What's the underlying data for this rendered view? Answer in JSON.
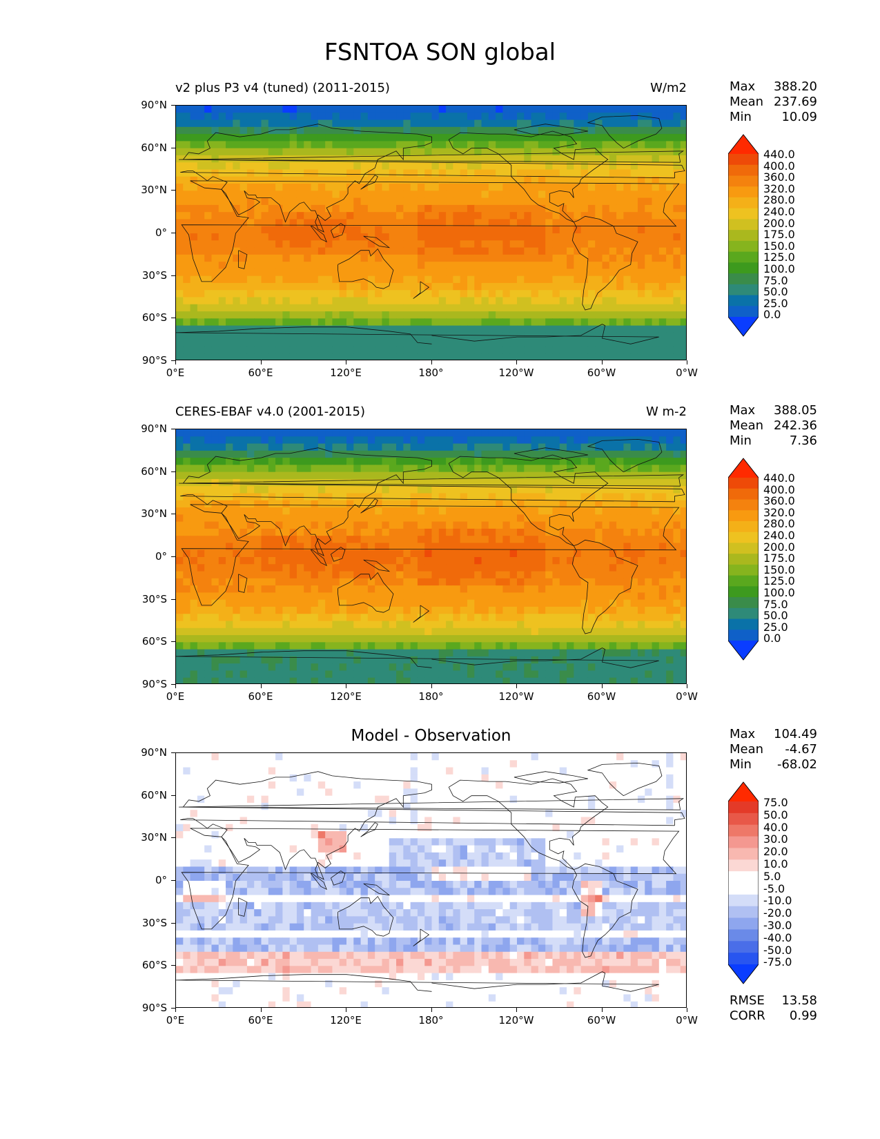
{
  "title": "FSNTOA SON global",
  "panels": [
    {
      "left_label": "v2 plus P3 v4 (tuned) (2011-2015)",
      "right_label": "W/m2",
      "stats": [
        [
          "Max",
          "388.20"
        ],
        [
          "Mean",
          "237.69"
        ],
        [
          "Min",
          "10.09"
        ]
      ],
      "colorbar_labels": [
        "440.0",
        "400.0",
        "360.0",
        "320.0",
        "280.0",
        "240.0",
        "200.0",
        "175.0",
        "150.0",
        "125.0",
        "100.0",
        "75.0",
        "50.0",
        "25.0",
        "0.0"
      ]
    },
    {
      "left_label": "CERES-EBAF v4.0 (2001-2015)",
      "right_label": "W m-2",
      "stats": [
        [
          "Max",
          "388.05"
        ],
        [
          "Mean",
          "242.36"
        ],
        [
          "Min",
          "7.36"
        ]
      ],
      "colorbar_labels": [
        "440.0",
        "400.0",
        "360.0",
        "320.0",
        "280.0",
        "240.0",
        "200.0",
        "175.0",
        "150.0",
        "125.0",
        "100.0",
        "75.0",
        "50.0",
        "25.0",
        "0.0"
      ]
    },
    {
      "center_label": "Model - Observation",
      "stats": [
        [
          "Max",
          "104.49"
        ],
        [
          "Mean",
          "-4.67"
        ],
        [
          "Min",
          "-68.02"
        ]
      ],
      "colorbar_labels": [
        "75.0",
        "50.0",
        "40.0",
        "30.0",
        "20.0",
        "10.0",
        "5.0",
        "-5.0",
        "-10.0",
        "-20.0",
        "-30.0",
        "-40.0",
        "-50.0",
        "-75.0"
      ],
      "extra_stats": [
        [
          "RMSE",
          "13.58"
        ],
        [
          "CORR",
          "0.99"
        ]
      ]
    }
  ],
  "axes": {
    "y_ticks": [
      "90°N",
      "60°N",
      "30°N",
      "0°",
      "30°S",
      "60°S",
      "90°S"
    ],
    "x_ticks": [
      "0°E",
      "60°E",
      "120°E",
      "180°",
      "120°W",
      "60°W",
      "0°W"
    ]
  },
  "colors": {
    "field_scale": [
      "#0a3dff",
      "#0f60c8",
      "#0a72a8",
      "#2e8a78",
      "#3a8c4a",
      "#3d9a1e",
      "#5aa81e",
      "#86b41e",
      "#aab81e",
      "#d0c020",
      "#eec220",
      "#f4b018",
      "#f89a10",
      "#f4820e",
      "#f06a0a",
      "#ee4a08",
      "#ff2a00"
    ],
    "diff_scale": [
      "#0a3dff",
      "#2855f0",
      "#4a6ee8",
      "#6a8ae8",
      "#8ea6ee",
      "#b0c0f2",
      "#d4ddf8",
      "#ffffff",
      "#ffffff",
      "#fbd8d4",
      "#f8b8b0",
      "#f49890",
      "#ee7868",
      "#e85848",
      "#e43a28",
      "#ff2a00"
    ]
  }
}
